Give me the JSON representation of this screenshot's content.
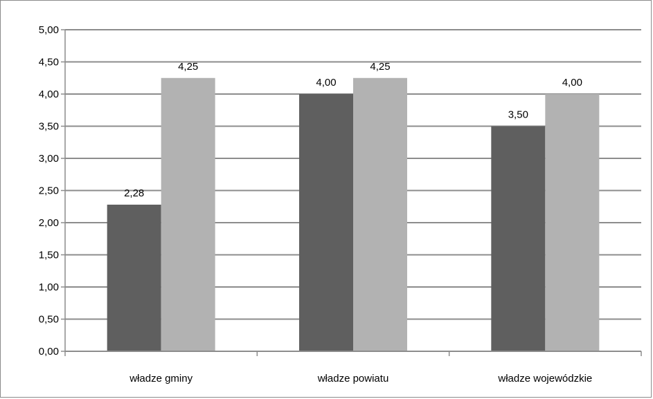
{
  "chart_data": {
    "type": "bar",
    "title": "",
    "xlabel": "",
    "ylabel": "",
    "categories": [
      "władze gminy",
      "władze powiatu",
      "władze wojewódzkie"
    ],
    "series": [
      {
        "values": [
          2.28,
          4.0,
          3.5
        ],
        "labels": [
          "2,28",
          "4,00",
          "3,50"
        ],
        "color": "#5f5f5f"
      },
      {
        "values": [
          4.25,
          4.25,
          4.0
        ],
        "labels": [
          "4,25",
          "4,25",
          "4,00"
        ],
        "color": "#b2b2b2"
      }
    ],
    "ylim": [
      0,
      5
    ],
    "yticks": [
      0,
      0.5,
      1,
      1.5,
      2,
      2.5,
      3,
      3.5,
      4,
      4.5,
      5
    ],
    "ytick_labels": [
      "0,00",
      "0,50",
      "1,00",
      "1,50",
      "2,00",
      "2,50",
      "3,00",
      "3,50",
      "4,00",
      "4,50",
      "5,00"
    ],
    "grid": true,
    "legend": "none",
    "gridline_color": "#8c8c8c"
  }
}
